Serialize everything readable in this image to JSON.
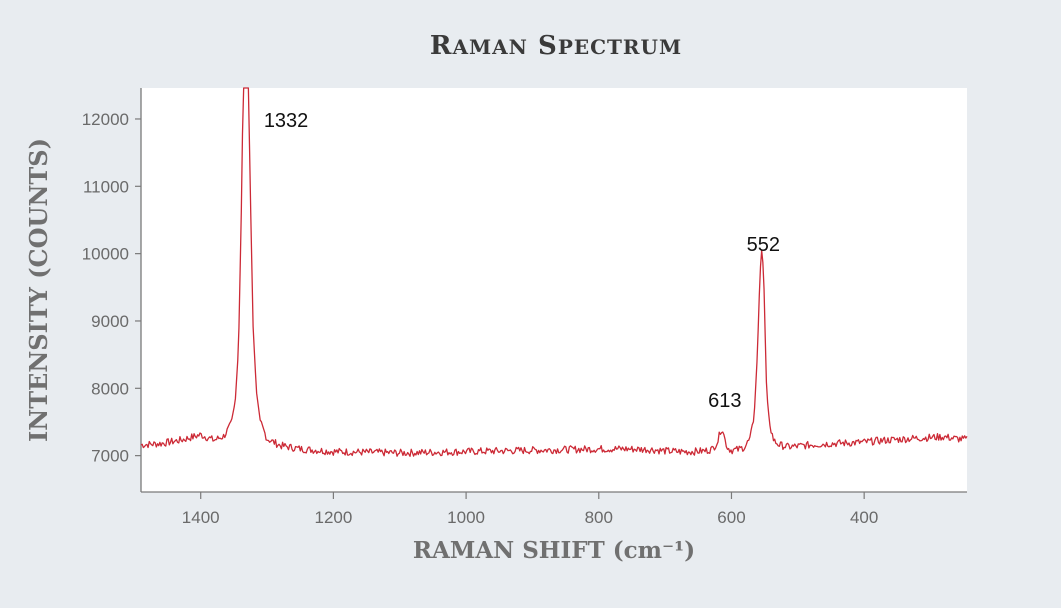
{
  "chart_data": {
    "type": "line",
    "title": "Raman Spectrum",
    "xlabel": "RAMAN SHIFT (cm⁻¹)",
    "ylabel": "INTENSITY (COUNTS)",
    "x_reversed": true,
    "xlim": [
      1490,
      245
    ],
    "ylim": [
      6460,
      12460
    ],
    "x_ticks": [
      1400,
      1200,
      1000,
      800,
      600,
      400
    ],
    "y_ticks": [
      7000,
      8000,
      9000,
      10000,
      11000,
      12000
    ],
    "grid": false,
    "colors": {
      "line": "#cc2a36",
      "background": "#e8ecf0",
      "plot_bg": "#ffffff"
    },
    "series": [
      {
        "x": [
          1490,
          1460,
          1430,
          1400,
          1380,
          1365,
          1355,
          1348,
          1343,
          1339,
          1336,
          1334,
          1332,
          1330,
          1328,
          1325,
          1321,
          1316,
          1310,
          1300,
          1280,
          1250,
          1200,
          1150,
          1100,
          1050,
          1000,
          950,
          900,
          850,
          800,
          760,
          720,
          700,
          680,
          660,
          640,
          628,
          620,
          616,
          613,
          610,
          606,
          600,
          590,
          580,
          572,
          566,
          561,
          558,
          555,
          552,
          550,
          548,
          545,
          541,
          536,
          528,
          515,
          500,
          480,
          450,
          420,
          400,
          380,
          350,
          320,
          300,
          280,
          260,
          245
        ],
        "y": [
          7160,
          7180,
          7230,
          7310,
          7230,
          7290,
          7450,
          7800,
          8600,
          10500,
          12460,
          12460,
          12460,
          12460,
          12460,
          10800,
          8900,
          7950,
          7500,
          7250,
          7150,
          7100,
          7060,
          7050,
          7040,
          7050,
          7060,
          7070,
          7080,
          7090,
          7100,
          7100,
          7090,
          7070,
          7060,
          7060,
          7070,
          7100,
          7230,
          7400,
          7380,
          7240,
          7120,
          7080,
          7090,
          7130,
          7250,
          7550,
          8500,
          9400,
          10100,
          9800,
          9200,
          8200,
          7700,
          7400,
          7220,
          7160,
          7130,
          7140,
          7160,
          7180,
          7190,
          7200,
          7220,
          7240,
          7260,
          7270,
          7280,
          7250,
          7240
        ]
      }
    ],
    "annotations": [
      {
        "text": "1332",
        "x": 1332
      },
      {
        "text": "552",
        "x": 552
      },
      {
        "text": "613",
        "x": 613
      }
    ]
  }
}
